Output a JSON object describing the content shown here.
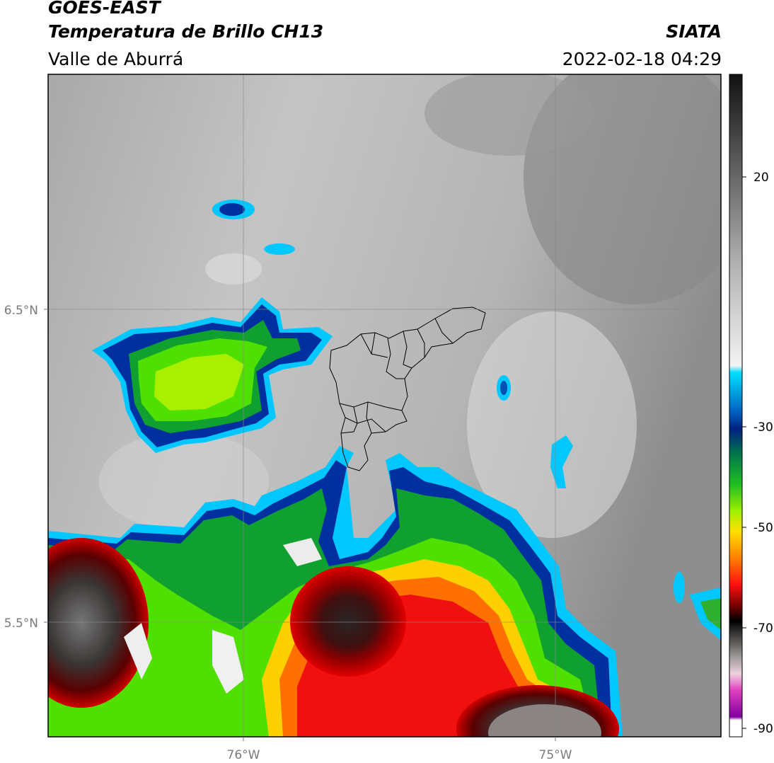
{
  "header": {
    "satellite": "GOES-EAST",
    "product": "Temperatura de Brillo CH13",
    "region": "Valle de Aburrá",
    "agency": "SIATA",
    "timestamp": "2022-02-18 04:29"
  },
  "map": {
    "lat_labels": [
      "6.5°N",
      "5.5°N"
    ],
    "lon_labels": [
      "76°W",
      "75°W"
    ],
    "colorbar_ticks": [
      "20",
      "-30",
      "-50",
      "-70",
      "-90"
    ]
  },
  "colors": {
    "frame": "#000000",
    "grid": "#8a8a8a",
    "axis_label": "#7a7a7a"
  }
}
